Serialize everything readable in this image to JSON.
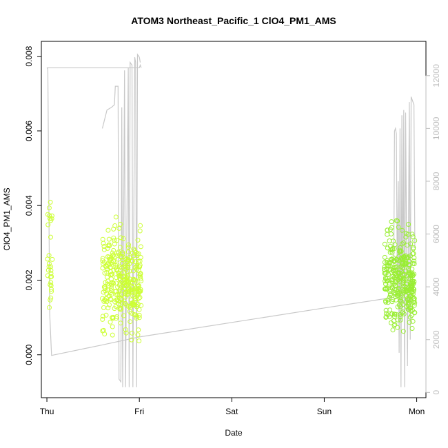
{
  "chart_data": {
    "type": "scatter",
    "title": "ATOM3 Northeast_Pacific_1 ClO4_PM1_AMS",
    "xlabel": "Date",
    "ylabel": "ClO4_PM1_AMS",
    "x_unit": "days from Thu 00:00",
    "xlim": [
      -0.06,
      4.1
    ],
    "ylim": [
      -0.00115,
      0.0084
    ],
    "y2lim": [
      -200,
      13300
    ],
    "x_ticks": [
      {
        "value": 0,
        "label": "Thu"
      },
      {
        "value": 1,
        "label": "Fri"
      },
      {
        "value": 2,
        "label": "Sat"
      },
      {
        "value": 3,
        "label": "Sun"
      },
      {
        "value": 4,
        "label": "Mon"
      }
    ],
    "y_ticks": [
      {
        "value": 0.0,
        "label": "0.000"
      },
      {
        "value": 0.002,
        "label": "0.002"
      },
      {
        "value": 0.004,
        "label": "0.004"
      },
      {
        "value": 0.006,
        "label": "0.006"
      },
      {
        "value": 0.008,
        "label": "0.008"
      }
    ],
    "y2_ticks": [
      {
        "value": 0,
        "label": "0"
      },
      {
        "value": 2000,
        "label": "2000"
      },
      {
        "value": 4000,
        "label": "4000"
      },
      {
        "value": 6000,
        "label": "6000"
      },
      {
        "value": 8000,
        "label": "8000"
      },
      {
        "value": 10000,
        "label": "10000"
      },
      {
        "value": 12000,
        "label": "12000"
      }
    ],
    "grid": false,
    "legend": "none",
    "colors": {
      "points_early": "#ccff33",
      "points_late": "#99ee33",
      "altitude_line": "#c8c8c8",
      "axis": "#000000",
      "right_axis": "#bdbdbd"
    },
    "series": [
      {
        "kind": "points",
        "axis": "left",
        "clusters": [
          {
            "x_range": [
              0.0,
              0.06
            ],
            "y_range": [
              0.0012,
              0.0041
            ],
            "count": 30
          },
          {
            "x_range": [
              0.6,
              1.02
            ],
            "y_range": [
              -0.0007,
              0.0083
            ],
            "count": 320
          },
          {
            "x_range": [
              3.65,
              3.98
            ],
            "y_range": [
              -0.0008,
              0.0052
            ],
            "count": 330
          }
        ]
      },
      {
        "kind": "line",
        "axis": "right",
        "points": [
          [
            0.0,
            12300
          ],
          [
            0.01,
            12250
          ],
          [
            0.03,
            3000
          ],
          [
            0.05,
            1400
          ],
          [
            0.6,
            1800
          ],
          [
            1.0,
            2100
          ],
          [
            3.0,
            3200
          ],
          [
            3.75,
            3600
          ],
          [
            3.76,
            9900
          ],
          [
            3.77,
            10000
          ],
          [
            3.78,
            9800
          ],
          [
            3.79,
            4000
          ],
          [
            3.8,
            8000
          ],
          [
            3.81,
            1500
          ],
          [
            3.82,
            10000
          ],
          [
            3.83,
            200
          ],
          [
            3.84,
            10500
          ],
          [
            3.85,
            3000
          ],
          [
            3.86,
            10700
          ],
          [
            3.87,
            200
          ],
          [
            3.88,
            10600
          ],
          [
            3.9,
            1000
          ],
          [
            3.92,
            11000
          ],
          [
            3.93,
            2000
          ],
          [
            3.94,
            11200
          ],
          [
            3.97,
            10900
          ],
          [
            3.98,
            5500
          ]
        ]
      },
      {
        "kind": "line",
        "axis": "right",
        "points": [
          [
            0.0,
            12300
          ],
          [
            0.5,
            12300
          ],
          [
            1.0,
            12300
          ],
          [
            1.01,
            12400
          ],
          [
            1.02,
            12300
          ]
        ]
      },
      {
        "kind": "line",
        "axis": "right",
        "points": [
          [
            0.6,
            10000
          ],
          [
            0.65,
            10700
          ],
          [
            0.7,
            10800
          ],
          [
            0.73,
            10900
          ],
          [
            0.74,
            11600
          ],
          [
            0.77,
            11600
          ],
          [
            0.78,
            500
          ],
          [
            0.8,
            400
          ],
          [
            0.81,
            10800
          ],
          [
            0.82,
            200
          ],
          [
            0.84,
            12200
          ],
          [
            0.85,
            200
          ],
          [
            0.88,
            12300
          ],
          [
            0.89,
            200
          ],
          [
            0.9,
            12500
          ],
          [
            0.92,
            12400
          ],
          [
            0.93,
            200
          ],
          [
            0.95,
            12700
          ],
          [
            0.96,
            12500
          ],
          [
            0.97,
            200
          ],
          [
            0.98,
            12800
          ],
          [
            1.0,
            12700
          ],
          [
            1.01,
            12500
          ]
        ]
      }
    ]
  }
}
